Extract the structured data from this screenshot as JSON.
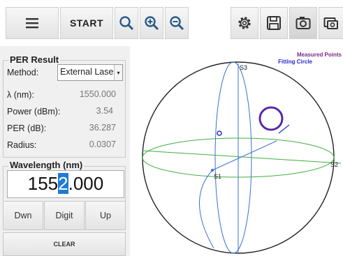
{
  "toolbar": {
    "start_label": "START",
    "icons": [
      "menu-icon",
      "zoom-fit-icon",
      "zoom-in-icon",
      "zoom-out-icon",
      "gear-icon",
      "save-icon",
      "camera-icon",
      "copy-screenshot-icon"
    ]
  },
  "per_result": {
    "title": "PER Result",
    "method_label": "Method:",
    "method_value": "External Laser",
    "lambda_label": "λ (nm):",
    "lambda_value": "1550.000",
    "power_label": "Power (dBm):",
    "power_value": "3.54",
    "per_label": "PER (dB):",
    "per_value": "36.287",
    "radius_label": "Radius:",
    "radius_value": "0.0307"
  },
  "wavelength": {
    "title": "Wavelength (nm)",
    "value_before": "155",
    "value_selected": "2",
    "value_after": ".000",
    "down_label": "Dwn",
    "digit_label": "Digit",
    "up_label": "Up",
    "clear_label": "CLEAR"
  },
  "sphere": {
    "legend_measured": "Measured Points",
    "legend_fitting": "Fitting Circle",
    "axis_s1": "S1",
    "axis_s2": "S2",
    "axis_s3": "S3",
    "colors": {
      "measured": "#7b2a8c",
      "fitting": "#2a2ad0",
      "s1": "#3a6fd0",
      "s2": "#3fae3f",
      "s3": "#3a6fd0"
    }
  }
}
